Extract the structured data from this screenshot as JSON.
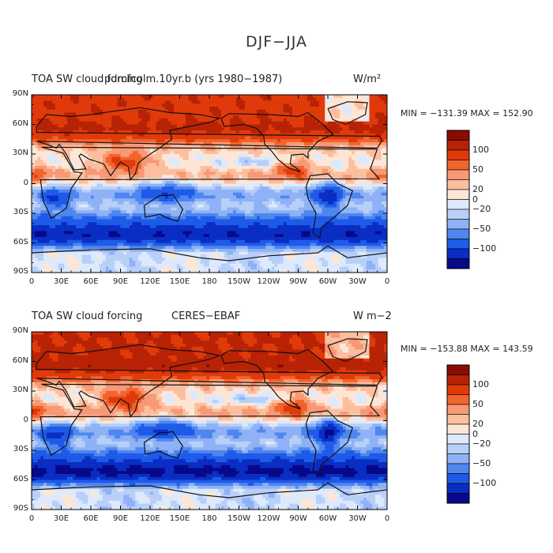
{
  "figure": {
    "title": "DJF−JJA"
  },
  "palette": [
    "#08088a",
    "#0a2ec4",
    "#1e5be8",
    "#4f86ef",
    "#8eb2f5",
    "#b8cff8",
    "#dde9fc",
    "#fde6d6",
    "#fbbf9f",
    "#f89874",
    "#f2642d",
    "#e13a0a",
    "#b82205",
    "#8a0b03"
  ],
  "chart_data": [
    {
      "type": "heatmap",
      "title_left": "TOA SW cloud forcing",
      "title_center": "pdmfcolm.10yr.b (yrs 1980−1987)",
      "units": "W/m²",
      "stats": "MIN = −131.39  MAX = 152.90",
      "ylabels": [
        "90N",
        "60N",
        "30N",
        "0",
        "30S",
        "60S",
        "90S"
      ],
      "xlabels": [
        "0",
        "30E",
        "60E",
        "90E",
        "120E",
        "150E",
        "180",
        "150W",
        "120W",
        "90W",
        "60W",
        "30W",
        "0"
      ],
      "colorbar_labels": [
        "100",
        "50",
        "20",
        "0",
        "−20",
        "−50",
        "−100"
      ]
    },
    {
      "type": "heatmap",
      "title_left": "TOA SW cloud forcing",
      "title_center": "CERES−EBAF",
      "units": "W m−2",
      "stats": "MIN = −153.88  MAX = 143.59",
      "ylabels": [
        "90N",
        "60N",
        "30N",
        "0",
        "30S",
        "60S",
        "90S"
      ],
      "xlabels": [
        "0",
        "30E",
        "60E",
        "90E",
        "120E",
        "150E",
        "180",
        "150W",
        "120W",
        "90W",
        "60W",
        "30W",
        "0"
      ],
      "colorbar_labels": [
        "100",
        "50",
        "20",
        "0",
        "−20",
        "−50",
        "−100"
      ]
    }
  ]
}
